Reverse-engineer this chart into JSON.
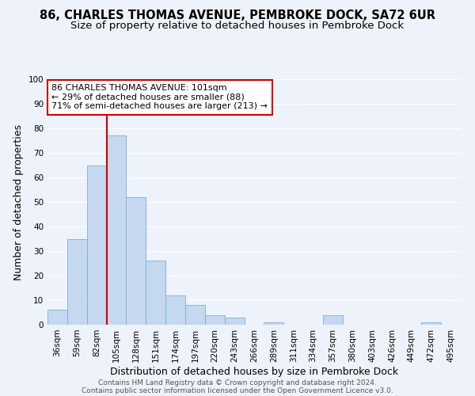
{
  "title": "86, CHARLES THOMAS AVENUE, PEMBROKE DOCK, SA72 6UR",
  "subtitle": "Size of property relative to detached houses in Pembroke Dock",
  "xlabel": "Distribution of detached houses by size in Pembroke Dock",
  "ylabel": "Number of detached properties",
  "bin_labels": [
    "36sqm",
    "59sqm",
    "82sqm",
    "105sqm",
    "128sqm",
    "151sqm",
    "174sqm",
    "197sqm",
    "220sqm",
    "243sqm",
    "266sqm",
    "289sqm",
    "311sqm",
    "334sqm",
    "357sqm",
    "380sqm",
    "403sqm",
    "426sqm",
    "449sqm",
    "472sqm",
    "495sqm"
  ],
  "bar_heights": [
    6,
    35,
    65,
    77,
    52,
    26,
    12,
    8,
    4,
    3,
    0,
    1,
    0,
    0,
    4,
    0,
    0,
    0,
    0,
    1,
    0
  ],
  "bar_color": "#c5d8f0",
  "bar_edge_color": "#7bafd4",
  "vline_color": "#cc0000",
  "vline_index": 2.5,
  "ylim": [
    0,
    100
  ],
  "yticks": [
    0,
    10,
    20,
    30,
    40,
    50,
    60,
    70,
    80,
    90,
    100
  ],
  "annotation_title": "86 CHARLES THOMAS AVENUE: 101sqm",
  "annotation_line1": "← 29% of detached houses are smaller (88)",
  "annotation_line2": "71% of semi-detached houses are larger (213) →",
  "annotation_box_color": "#ffffff",
  "annotation_box_edge": "#cc0000",
  "footer_line1": "Contains HM Land Registry data © Crown copyright and database right 2024.",
  "footer_line2": "Contains public sector information licensed under the Open Government Licence v3.0.",
  "background_color": "#eef2fa",
  "grid_color": "#ffffff",
  "title_fontsize": 10.5,
  "subtitle_fontsize": 9.5,
  "axis_label_fontsize": 9,
  "tick_fontsize": 7.5,
  "annotation_fontsize": 8,
  "footer_fontsize": 6.5
}
